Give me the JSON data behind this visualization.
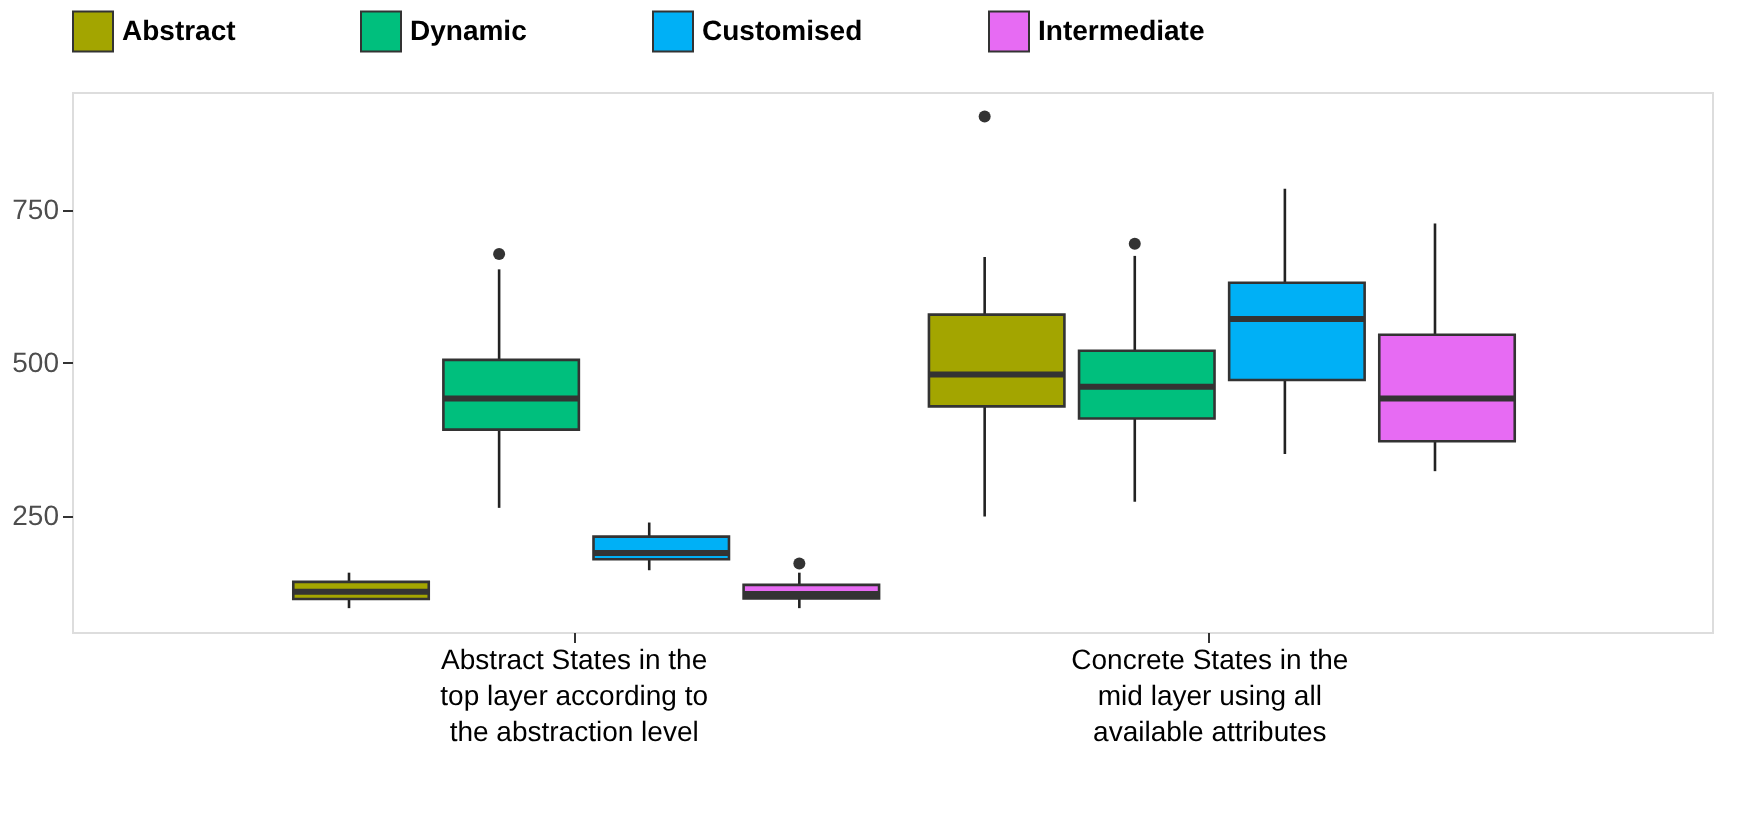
{
  "chart_data": {
    "type": "box",
    "categories": [
      "Abstract States in the\ntop layer according to\nthe abstraction level",
      "Concrete States in the\nmid layer using all\navailable attributes"
    ],
    "ylim": [
      60,
      943
    ],
    "yticks": [
      250,
      500,
      750
    ],
    "grid": false,
    "legend": "top",
    "series": [
      {
        "name": "Abstract",
        "color": "#a3a500",
        "boxes": [
          {
            "low": 99,
            "q1": 114,
            "median": 126,
            "q3": 142,
            "high": 157
          },
          {
            "low": 249,
            "q1": 429,
            "median": 481,
            "q3": 579,
            "high": 673,
            "outliers": [
              903
            ]
          }
        ]
      },
      {
        "name": "Dynamic",
        "color": "#00bf7d",
        "boxes": [
          {
            "low": 263,
            "q1": 391,
            "median": 442,
            "q3": 505,
            "high": 653,
            "outliers": [
              678
            ]
          },
          {
            "low": 273,
            "q1": 409,
            "median": 461,
            "q3": 520,
            "high": 675,
            "outliers": [
              695
            ]
          }
        ]
      },
      {
        "name": "Customised",
        "color": "#00b0f6",
        "boxes": [
          {
            "low": 161,
            "q1": 179,
            "median": 189,
            "q3": 216,
            "high": 239
          },
          {
            "low": 351,
            "q1": 472,
            "median": 572,
            "q3": 631,
            "high": 785
          }
        ]
      },
      {
        "name": "Intermediate",
        "color": "#e76bf3",
        "boxes": [
          {
            "low": 99,
            "q1": 115,
            "median": 122,
            "q3": 137,
            "high": 157,
            "outliers": [
              172
            ]
          },
          {
            "low": 323,
            "q1": 372,
            "median": 442,
            "q3": 546,
            "high": 728
          }
        ]
      }
    ]
  }
}
